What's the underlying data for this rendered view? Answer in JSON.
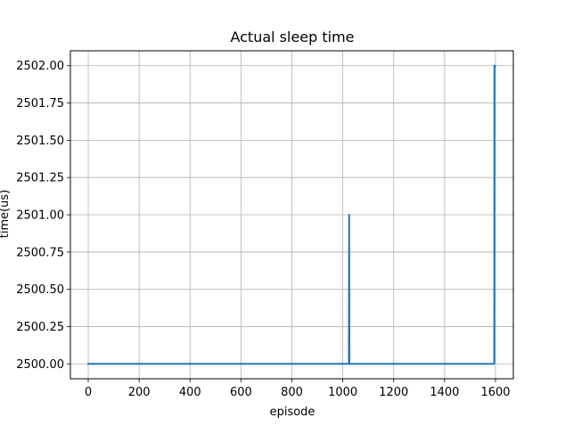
{
  "chart_data": {
    "type": "line",
    "title": "Actual sleep time",
    "xlabel": "episode",
    "ylabel": "time(us)",
    "xlim": [
      -70,
      1670
    ],
    "ylim": [
      2499.9,
      2502.1
    ],
    "grid": true,
    "x_ticks": [
      0,
      200,
      400,
      600,
      800,
      1000,
      1200,
      1400,
      1600
    ],
    "x_tick_labels": [
      "0",
      "200",
      "400",
      "600",
      "800",
      "1000",
      "1200",
      "1400",
      "1600"
    ],
    "y_ticks": [
      2500.0,
      2500.25,
      2500.5,
      2500.75,
      2501.0,
      2501.25,
      2501.5,
      2501.75,
      2502.0
    ],
    "y_tick_labels": [
      "2500.00",
      "2500.25",
      "2500.50",
      "2500.75",
      "2501.00",
      "2501.25",
      "2501.50",
      "2501.75",
      "2502.00"
    ],
    "series": [
      {
        "color": "#1f77b4",
        "x": [
          0,
          1024,
          1025,
          1026,
          1027,
          1595,
          1596,
          1597,
          1598
        ],
        "y": [
          2500,
          2500,
          2501,
          2500,
          2500,
          2500,
          2502,
          2502,
          2502
        ]
      }
    ]
  },
  "colors": {
    "grid": "#b0b0b0",
    "axes": "#000000",
    "background": "#ffffff"
  }
}
